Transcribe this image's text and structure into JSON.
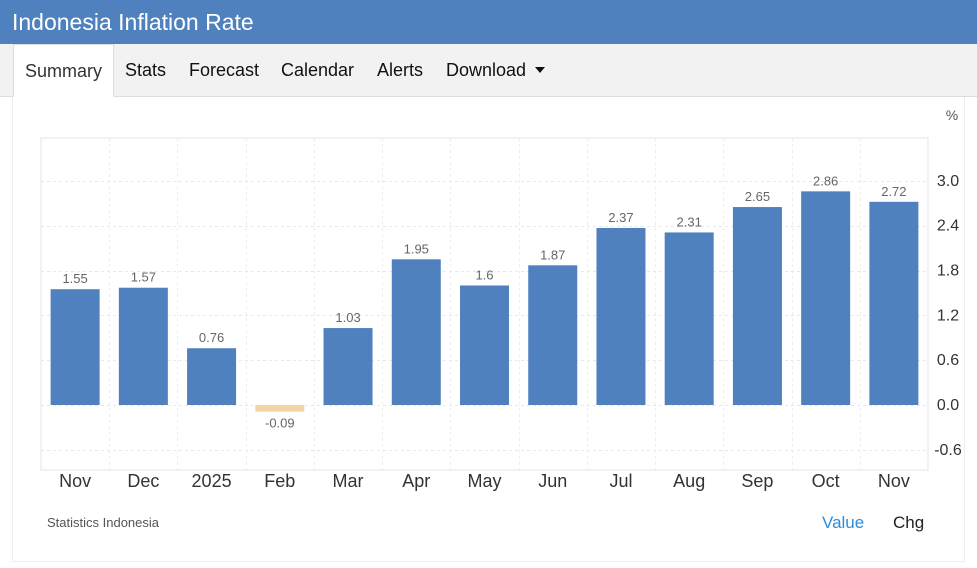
{
  "header": {
    "title": "Indonesia Inflation Rate"
  },
  "tabs": [
    {
      "label": "Summary",
      "active": true
    },
    {
      "label": "Stats"
    },
    {
      "label": "Forecast"
    },
    {
      "label": "Calendar"
    },
    {
      "label": "Alerts"
    },
    {
      "label": "Download",
      "dropdown": true
    }
  ],
  "chart_data": {
    "type": "bar",
    "unit": "%",
    "categories": [
      "Nov",
      "Dec",
      "2025",
      "Feb",
      "Mar",
      "Apr",
      "May",
      "Jun",
      "Jul",
      "Aug",
      "Sep",
      "Oct",
      "Nov"
    ],
    "values": [
      1.55,
      1.57,
      0.76,
      -0.09,
      1.03,
      1.95,
      1.6,
      1.87,
      2.37,
      2.31,
      2.65,
      2.86,
      2.72
    ],
    "value_labels": [
      "1.55",
      "1.57",
      "0.76",
      "-0.09",
      "1.03",
      "1.95",
      "1.6",
      "1.87",
      "2.37",
      "2.31",
      "2.65",
      "2.86",
      "2.72"
    ],
    "yticks": [
      "3.0",
      "2.4",
      "1.8",
      "1.2",
      "0.6",
      "0.0",
      "-0.6"
    ],
    "ylim": [
      -0.9,
      3.6
    ],
    "y_axis_position": "right",
    "grid": true,
    "colors": {
      "positive": "#4e81bd",
      "negative": "#f5d6a3"
    }
  },
  "footer": {
    "source": "Statistics Indonesia",
    "value_label": "Value",
    "chg_label": "Chg"
  }
}
